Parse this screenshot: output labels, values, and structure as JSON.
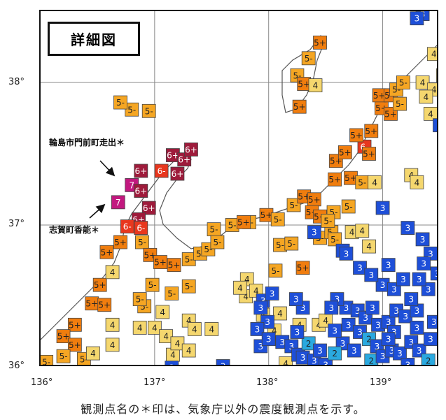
{
  "title": "詳細図",
  "caption": "観測点名の＊印は、気象庁以外の震度観測点を示す。",
  "axes": {
    "lon_ticks": [
      "136°",
      "137°",
      "138°",
      "139°"
    ],
    "lat_ticks": [
      "38°",
      "37°",
      "36°"
    ],
    "lon_range": [
      136.0,
      139.5
    ],
    "lat_range": [
      36.0,
      38.5
    ]
  },
  "sites": [
    {
      "label": "輪島市門前町走出＊",
      "lon": 136.82,
      "lat": 37.28
    },
    {
      "label": "志賀町香能＊",
      "lon": 136.79,
      "lat": 37.15
    }
  ],
  "site_labels": [
    "輪島市門前町走出＊",
    "志賀町香能＊"
  ],
  "colors": {
    "7": "#c2187f",
    "6+": "#9e1b3b",
    "6-": "#e8371e",
    "5+": "#f07d0e",
    "5-": "#f5a623",
    "4": "#f5d76e",
    "3": "#1e4fd8",
    "2": "#2aa9e0",
    "1": "#9fd8f0"
  },
  "intensity_markers": [
    {
      "lon": 136.8,
      "lat": 37.28,
      "v": "7"
    },
    {
      "lon": 136.68,
      "lat": 37.16,
      "v": "7"
    },
    {
      "lon": 137.16,
      "lat": 37.49,
      "v": "6+"
    },
    {
      "lon": 137.26,
      "lat": 37.46,
      "v": "6+"
    },
    {
      "lon": 136.88,
      "lat": 37.38,
      "v": "6+"
    },
    {
      "lon": 136.88,
      "lat": 37.24,
      "v": "6+"
    },
    {
      "lon": 136.95,
      "lat": 37.12,
      "v": "6+"
    },
    {
      "lon": 136.86,
      "lat": 37.04,
      "v": "6+"
    },
    {
      "lon": 137.06,
      "lat": 37.38,
      "v": "6-"
    },
    {
      "lon": 137.2,
      "lat": 37.36,
      "v": "6+"
    },
    {
      "lon": 136.76,
      "lat": 36.99,
      "v": "6-"
    },
    {
      "lon": 136.88,
      "lat": 36.98,
      "v": "6-"
    },
    {
      "lon": 136.7,
      "lat": 36.88,
      "v": "5+"
    },
    {
      "lon": 136.58,
      "lat": 36.81,
      "v": "5+"
    },
    {
      "lon": 136.89,
      "lat": 36.88,
      "v": "5-"
    },
    {
      "lon": 136.96,
      "lat": 36.79,
      "v": "5+"
    },
    {
      "lon": 137.05,
      "lat": 36.74,
      "v": "5+"
    },
    {
      "lon": 137.17,
      "lat": 36.72,
      "v": "5+"
    },
    {
      "lon": 137.3,
      "lat": 36.76,
      "v": "5-"
    },
    {
      "lon": 137.4,
      "lat": 36.8,
      "v": "5-"
    },
    {
      "lon": 136.52,
      "lat": 36.58,
      "v": "5+"
    },
    {
      "lon": 136.45,
      "lat": 36.45,
      "v": "5+"
    },
    {
      "lon": 136.56,
      "lat": 36.44,
      "v": "5+"
    },
    {
      "lon": 136.3,
      "lat": 36.3,
      "v": "5+"
    },
    {
      "lon": 136.2,
      "lat": 36.22,
      "v": "5+"
    },
    {
      "lon": 136.3,
      "lat": 36.16,
      "v": "5+"
    },
    {
      "lon": 136.2,
      "lat": 36.08,
      "v": "5-"
    },
    {
      "lon": 136.38,
      "lat": 36.06,
      "v": "5-"
    },
    {
      "lon": 136.05,
      "lat": 36.04,
      "v": "5-"
    },
    {
      "lon": 136.98,
      "lat": 36.58,
      "v": "5-"
    },
    {
      "lon": 137.3,
      "lat": 36.57,
      "v": "5-"
    },
    {
      "lon": 137.15,
      "lat": 36.52,
      "v": "5-"
    },
    {
      "lon": 136.91,
      "lat": 36.43,
      "v": "5-"
    },
    {
      "lon": 136.8,
      "lat": 37.81,
      "v": "5-"
    },
    {
      "lon": 137.52,
      "lat": 36.97,
      "v": "5-"
    },
    {
      "lon": 137.68,
      "lat": 37.0,
      "v": "5-"
    },
    {
      "lon": 137.83,
      "lat": 37.02,
      "v": "5-"
    },
    {
      "lon": 137.78,
      "lat": 37.02,
      "v": "5+"
    },
    {
      "lon": 137.98,
      "lat": 37.07,
      "v": "5+"
    },
    {
      "lon": 138.08,
      "lat": 37.04,
      "v": "5-"
    },
    {
      "lon": 138.22,
      "lat": 37.14,
      "v": "5-"
    },
    {
      "lon": 138.31,
      "lat": 37.2,
      "v": "5+"
    },
    {
      "lon": 138.4,
      "lat": 37.18,
      "v": "5+"
    },
    {
      "lon": 138.38,
      "lat": 37.09,
      "v": "5+"
    },
    {
      "lon": 138.57,
      "lat": 37.09,
      "v": "5-"
    },
    {
      "lon": 138.7,
      "lat": 37.13,
      "v": "5-"
    },
    {
      "lon": 138.58,
      "lat": 37.32,
      "v": "5+"
    },
    {
      "lon": 138.72,
      "lat": 37.33,
      "v": "5+"
    },
    {
      "lon": 138.82,
      "lat": 37.3,
      "v": "5-"
    },
    {
      "lon": 138.93,
      "lat": 37.3,
      "v": "4"
    },
    {
      "lon": 138.59,
      "lat": 37.45,
      "v": "5+"
    },
    {
      "lon": 138.67,
      "lat": 37.51,
      "v": "5+"
    },
    {
      "lon": 138.84,
      "lat": 37.55,
      "v": "6-"
    },
    {
      "lon": 138.77,
      "lat": 37.63,
      "v": "5+"
    },
    {
      "lon": 138.9,
      "lat": 37.66,
      "v": "5+"
    },
    {
      "lon": 138.99,
      "lat": 37.82,
      "v": "5+"
    },
    {
      "lon": 138.97,
      "lat": 37.91,
      "v": "5+"
    },
    {
      "lon": 139.07,
      "lat": 37.91,
      "v": "5+"
    },
    {
      "lon": 139.12,
      "lat": 37.95,
      "v": "5-"
    },
    {
      "lon": 139.18,
      "lat": 38.0,
      "v": "5-"
    },
    {
      "lon": 139.07,
      "lat": 37.78,
      "v": "5+"
    },
    {
      "lon": 139.15,
      "lat": 37.85,
      "v": "5-"
    },
    {
      "lon": 139.35,
      "lat": 38.0,
      "v": "4"
    },
    {
      "lon": 139.45,
      "lat": 37.95,
      "v": "4"
    },
    {
      "lon": 138.88,
      "lat": 37.5,
      "v": "5+"
    },
    {
      "lon": 138.45,
      "lat": 37.06,
      "v": "5+"
    },
    {
      "lon": 138.35,
      "lat": 38.17,
      "v": "5-"
    },
    {
      "lon": 138.25,
      "lat": 38.05,
      "v": "5-"
    },
    {
      "lon": 138.31,
      "lat": 37.99,
      "v": "5+"
    },
    {
      "lon": 138.41,
      "lat": 37.98,
      "v": "4"
    },
    {
      "lon": 138.27,
      "lat": 37.83,
      "v": "5+"
    },
    {
      "lon": 138.45,
      "lat": 38.28,
      "v": "5+"
    },
    {
      "lon": 138.1,
      "lat": 36.86,
      "v": "5-"
    },
    {
      "lon": 138.2,
      "lat": 36.87,
      "v": "5-"
    },
    {
      "lon": 138.06,
      "lat": 36.68,
      "v": "5-"
    },
    {
      "lon": 138.3,
      "lat": 36.7,
      "v": "5+"
    },
    {
      "lon": 138.45,
      "lat": 36.91,
      "v": "5-"
    },
    {
      "lon": 138.55,
      "lat": 36.95,
      "v": "5-"
    },
    {
      "lon": 138.73,
      "lat": 36.95,
      "v": "4"
    },
    {
      "lon": 138.82,
      "lat": 36.96,
      "v": "4"
    },
    {
      "lon": 138.52,
      "lat": 37.03,
      "v": "5-"
    },
    {
      "lon": 137.47,
      "lat": 36.83,
      "v": "5-"
    },
    {
      "lon": 137.55,
      "lat": 36.88,
      "v": "5-"
    },
    {
      "lon": 136.63,
      "lat": 36.67,
      "v": "4"
    },
    {
      "lon": 136.63,
      "lat": 36.3,
      "v": "4"
    },
    {
      "lon": 136.63,
      "lat": 36.16,
      "v": "4"
    },
    {
      "lon": 136.46,
      "lat": 36.1,
      "v": "4"
    },
    {
      "lon": 136.87,
      "lat": 36.48,
      "v": "5-"
    },
    {
      "lon": 136.87,
      "lat": 36.28,
      "v": "4"
    },
    {
      "lon": 137.0,
      "lat": 36.28,
      "v": "4"
    },
    {
      "lon": 137.07,
      "lat": 36.39,
      "v": "4"
    },
    {
      "lon": 137.1,
      "lat": 36.22,
      "v": "4"
    },
    {
      "lon": 137.16,
      "lat": 36.09,
      "v": "4"
    },
    {
      "lon": 137.2,
      "lat": 36.17,
      "v": "4"
    },
    {
      "lon": 137.3,
      "lat": 36.12,
      "v": "4"
    },
    {
      "lon": 137.3,
      "lat": 36.33,
      "v": "4"
    },
    {
      "lon": 137.35,
      "lat": 36.27,
      "v": "4"
    },
    {
      "lon": 137.5,
      "lat": 36.27,
      "v": "4"
    },
    {
      "lon": 137.81,
      "lat": 36.62,
      "v": "4"
    },
    {
      "lon": 137.8,
      "lat": 36.5,
      "v": "4"
    },
    {
      "lon": 137.89,
      "lat": 36.54,
      "v": "4"
    },
    {
      "lon": 137.95,
      "lat": 36.47,
      "v": "3"
    },
    {
      "lon": 137.75,
      "lat": 36.56,
      "v": "4"
    },
    {
      "lon": 137.95,
      "lat": 36.37,
      "v": "4"
    },
    {
      "lon": 138.1,
      "lat": 36.38,
      "v": "4"
    },
    {
      "lon": 138.05,
      "lat": 36.26,
      "v": "4"
    },
    {
      "lon": 138.15,
      "lat": 36.03,
      "v": "4"
    },
    {
      "lon": 138.27,
      "lat": 36.3,
      "v": "4"
    },
    {
      "lon": 138.44,
      "lat": 36.3,
      "v": "4"
    },
    {
      "lon": 138.5,
      "lat": 36.33,
      "v": "4"
    },
    {
      "lon": 138.3,
      "lat": 36.42,
      "v": "3"
    },
    {
      "lon": 138.24,
      "lat": 36.48,
      "v": "3"
    },
    {
      "lon": 136.7,
      "lat": 37.86,
      "v": "5-"
    },
    {
      "lon": 136.95,
      "lat": 37.8,
      "v": "5-"
    },
    {
      "lon": 137.32,
      "lat": 37.53,
      "v": "6+"
    },
    {
      "lon": 138.58,
      "lat": 36.9,
      "v": "5-"
    },
    {
      "lon": 138.65,
      "lat": 36.82,
      "v": "3"
    },
    {
      "lon": 138.88,
      "lat": 36.85,
      "v": "4"
    },
    {
      "lon": 139.25,
      "lat": 37.35,
      "v": "4"
    },
    {
      "lon": 139.3,
      "lat": 37.3,
      "v": "4"
    },
    {
      "lon": 139.22,
      "lat": 36.98,
      "v": "3"
    },
    {
      "lon": 139.0,
      "lat": 37.12,
      "v": "3"
    },
    {
      "lon": 139.35,
      "lat": 38.48,
      "v": "3"
    },
    {
      "lon": 139.45,
      "lat": 38.2,
      "v": "4"
    },
    {
      "lon": 139.42,
      "lat": 37.78,
      "v": "4"
    },
    {
      "lon": 139.38,
      "lat": 37.9,
      "v": "4"
    },
    {
      "lon": 139.5,
      "lat": 37.7,
      "v": "3"
    },
    {
      "lon": 138.03,
      "lat": 36.52,
      "v": "3"
    },
    {
      "lon": 137.93,
      "lat": 36.42,
      "v": "3"
    },
    {
      "lon": 137.99,
      "lat": 36.32,
      "v": "3"
    },
    {
      "lon": 137.9,
      "lat": 36.27,
      "v": "3"
    },
    {
      "lon": 137.93,
      "lat": 36.15,
      "v": "3"
    },
    {
      "lon": 138.0,
      "lat": 36.2,
      "v": "3"
    },
    {
      "lon": 138.12,
      "lat": 36.18,
      "v": "3"
    },
    {
      "lon": 138.2,
      "lat": 36.15,
      "v": "3"
    },
    {
      "lon": 138.26,
      "lat": 36.09,
      "v": "3"
    },
    {
      "lon": 138.35,
      "lat": 36.17,
      "v": "2"
    },
    {
      "lon": 138.3,
      "lat": 36.07,
      "v": "3"
    },
    {
      "lon": 138.4,
      "lat": 36.05,
      "v": "3"
    },
    {
      "lon": 138.5,
      "lat": 36.02,
      "v": "3"
    },
    {
      "lon": 138.65,
      "lat": 36.17,
      "v": "3"
    },
    {
      "lon": 138.58,
      "lat": 36.26,
      "v": "3"
    },
    {
      "lon": 138.7,
      "lat": 36.3,
      "v": "3"
    },
    {
      "lon": 138.8,
      "lat": 36.25,
      "v": "3"
    },
    {
      "lon": 138.68,
      "lat": 36.42,
      "v": "3"
    },
    {
      "lon": 138.78,
      "lat": 36.4,
      "v": "3"
    },
    {
      "lon": 138.85,
      "lat": 36.35,
      "v": "3"
    },
    {
      "lon": 138.91,
      "lat": 36.42,
      "v": "3"
    },
    {
      "lon": 138.96,
      "lat": 36.3,
      "v": "3"
    },
    {
      "lon": 139.05,
      "lat": 36.32,
      "v": "3"
    },
    {
      "lon": 139.12,
      "lat": 36.4,
      "v": "3"
    },
    {
      "lon": 139.2,
      "lat": 36.36,
      "v": "3"
    },
    {
      "lon": 139.3,
      "lat": 36.4,
      "v": "3"
    },
    {
      "lon": 139.0,
      "lat": 36.58,
      "v": "3"
    },
    {
      "lon": 139.1,
      "lat": 36.55,
      "v": "3"
    },
    {
      "lon": 139.18,
      "lat": 36.62,
      "v": "3"
    },
    {
      "lon": 138.8,
      "lat": 36.7,
      "v": "3"
    },
    {
      "lon": 138.9,
      "lat": 36.65,
      "v": "3"
    },
    {
      "lon": 139.05,
      "lat": 36.72,
      "v": "3"
    },
    {
      "lon": 139.25,
      "lat": 36.48,
      "v": "3"
    },
    {
      "lon": 139.4,
      "lat": 36.55,
      "v": "3"
    },
    {
      "lon": 139.32,
      "lat": 36.62,
      "v": "3"
    },
    {
      "lon": 139.1,
      "lat": 36.25,
      "v": "3"
    },
    {
      "lon": 138.88,
      "lat": 36.2,
      "v": "2"
    },
    {
      "lon": 138.95,
      "lat": 36.15,
      "v": "3"
    },
    {
      "lon": 138.75,
      "lat": 36.12,
      "v": "3"
    },
    {
      "lon": 138.9,
      "lat": 36.05,
      "v": "2"
    },
    {
      "lon": 139.0,
      "lat": 36.08,
      "v": "3"
    },
    {
      "lon": 139.08,
      "lat": 36.12,
      "v": "3"
    },
    {
      "lon": 139.15,
      "lat": 36.1,
      "v": "3"
    },
    {
      "lon": 139.25,
      "lat": 36.18,
      "v": "3"
    },
    {
      "lon": 139.32,
      "lat": 36.12,
      "v": "3"
    },
    {
      "lon": 139.42,
      "lat": 36.2,
      "v": "3"
    },
    {
      "lon": 139.4,
      "lat": 36.05,
      "v": "2"
    },
    {
      "lon": 139.22,
      "lat": 36.02,
      "v": "3"
    },
    {
      "lon": 139.3,
      "lat": 36.28,
      "v": "3"
    },
    {
      "lon": 139.45,
      "lat": 36.32,
      "v": "3"
    },
    {
      "lon": 139.05,
      "lat": 36.2,
      "v": "3"
    },
    {
      "lon": 138.58,
      "lat": 36.1,
      "v": "2"
    },
    {
      "lon": 138.45,
      "lat": 36.12,
      "v": "3"
    },
    {
      "lon": 138.25,
      "lat": 36.25,
      "v": "3"
    },
    {
      "lon": 138.6,
      "lat": 36.48,
      "v": "3"
    },
    {
      "lon": 138.55,
      "lat": 36.42,
      "v": "3"
    },
    {
      "lon": 137.15,
      "lat": 36.0,
      "v": "3"
    },
    {
      "lon": 137.6,
      "lat": 36.01,
      "v": "3"
    },
    {
      "lon": 138.4,
      "lat": 36.95,
      "v": "3"
    },
    {
      "lon": 139.35,
      "lat": 36.9,
      "v": "3"
    },
    {
      "lon": 139.42,
      "lat": 36.8,
      "v": "3"
    },
    {
      "lon": 139.48,
      "lat": 36.66,
      "v": "3"
    },
    {
      "lon": 139.36,
      "lat": 36.73,
      "v": "3"
    },
    {
      "lon": 138.68,
      "lat": 36.8,
      "v": "3"
    },
    {
      "lon": 139.3,
      "lat": 38.45,
      "v": "3"
    },
    {
      "lon": 139.53,
      "lat": 38.05,
      "v": "4"
    }
  ]
}
